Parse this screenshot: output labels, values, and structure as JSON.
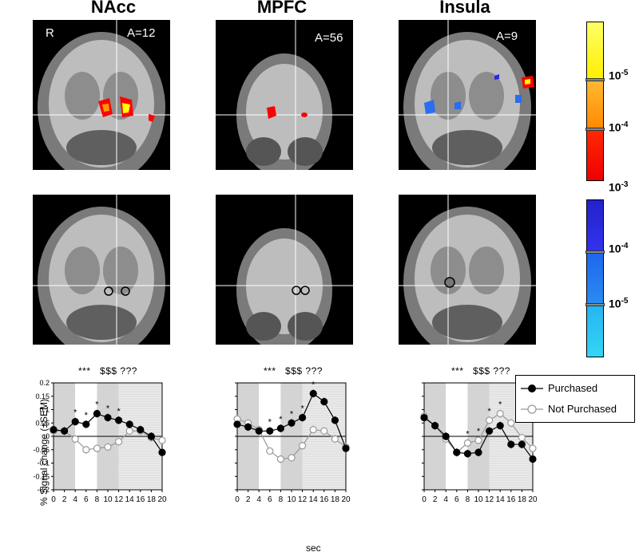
{
  "titles": [
    "NAcc",
    "MPFC",
    "Insula"
  ],
  "panel_labels": {
    "hemisphere": "R",
    "nacc_slice": "A=12",
    "mpfc_slice": "A=56",
    "insula_slice": "A=9"
  },
  "colorbar": {
    "positive_labels": [
      "10",
      "10",
      "10"
    ],
    "positive_exponents": [
      "-5",
      "-4",
      "-3"
    ],
    "negative_labels": [
      "10",
      "10"
    ],
    "negative_exponents": [
      "-4",
      "-5"
    ],
    "positive_colors": [
      "#ffff00",
      "#ff9900",
      "#ff0000"
    ],
    "negative_colors": [
      "#2a2adf",
      "#1e73ef",
      "#29c8f0"
    ]
  },
  "significance_text": [
    "***",
    "$$$",
    "???"
  ],
  "y_axis_label": "% Signal change (±SEM)",
  "x_axis_label": "sec",
  "legend": {
    "purchased": "Purchased",
    "not_purchased": "Not Purchased"
  },
  "chart_data": [
    {
      "type": "line",
      "title": "NAcc",
      "x": [
        0,
        2,
        4,
        6,
        8,
        10,
        12,
        14,
        16,
        18,
        20
      ],
      "series": [
        {
          "name": "Purchased",
          "values": [
            0.025,
            0.02,
            0.055,
            0.045,
            0.085,
            0.07,
            0.06,
            0.045,
            0.025,
            0.0,
            -0.06
          ]
        },
        {
          "name": "Not Purchased",
          "values": [
            0.02,
            0.02,
            -0.01,
            -0.05,
            -0.045,
            -0.04,
            -0.02,
            0.02,
            0.02,
            -0.005,
            -0.015
          ]
        }
      ],
      "star_x": [
        4,
        6,
        8,
        10,
        12
      ],
      "ylim": [
        -0.2,
        0.2
      ],
      "yticks": [
        -0.2,
        -0.15,
        -0.1,
        -0.05,
        0,
        0.05,
        0.1,
        0.15,
        0.2
      ],
      "xtick_labels": [
        "0",
        "2",
        "4",
        "6",
        "8",
        "10",
        "12",
        "14",
        "16",
        "18",
        "20"
      ]
    },
    {
      "type": "line",
      "title": "MPFC",
      "x": [
        0,
        2,
        4,
        6,
        8,
        10,
        12,
        14,
        16,
        18,
        20
      ],
      "series": [
        {
          "name": "Purchased",
          "values": [
            0.045,
            0.035,
            0.02,
            0.02,
            0.03,
            0.05,
            0.07,
            0.16,
            0.13,
            0.06,
            -0.045
          ]
        },
        {
          "name": "Not Purchased",
          "values": [
            0.065,
            0.05,
            0.025,
            -0.055,
            -0.085,
            -0.08,
            -0.035,
            0.025,
            0.02,
            -0.01,
            -0.04
          ]
        }
      ],
      "star_x": [
        6,
        8,
        10,
        12,
        14
      ],
      "ylim": [
        -0.2,
        0.2
      ],
      "xtick_labels": [
        "0",
        "2",
        "4",
        "6",
        "8",
        "10",
        "12",
        "14",
        "16",
        "18",
        "20"
      ]
    },
    {
      "type": "line",
      "title": "Insula",
      "x": [
        0,
        2,
        4,
        6,
        8,
        10,
        12,
        14,
        16,
        18,
        20
      ],
      "series": [
        {
          "name": "Purchased",
          "values": [
            0.07,
            0.04,
            0.0,
            -0.06,
            -0.065,
            -0.06,
            0.02,
            0.04,
            -0.03,
            -0.03,
            -0.085
          ]
        },
        {
          "name": "Not Purchased",
          "values": [
            0.075,
            0.04,
            -0.01,
            -0.06,
            -0.025,
            -0.015,
            0.06,
            0.085,
            0.05,
            -0.005,
            -0.045
          ]
        }
      ],
      "star_x": [
        8,
        10,
        12,
        14
      ],
      "ylim": [
        -0.2,
        0.2
      ],
      "xtick_labels": [
        "0",
        "2",
        "4",
        "6",
        "8",
        "10",
        "12",
        "14",
        "16",
        "18",
        "20"
      ]
    }
  ]
}
